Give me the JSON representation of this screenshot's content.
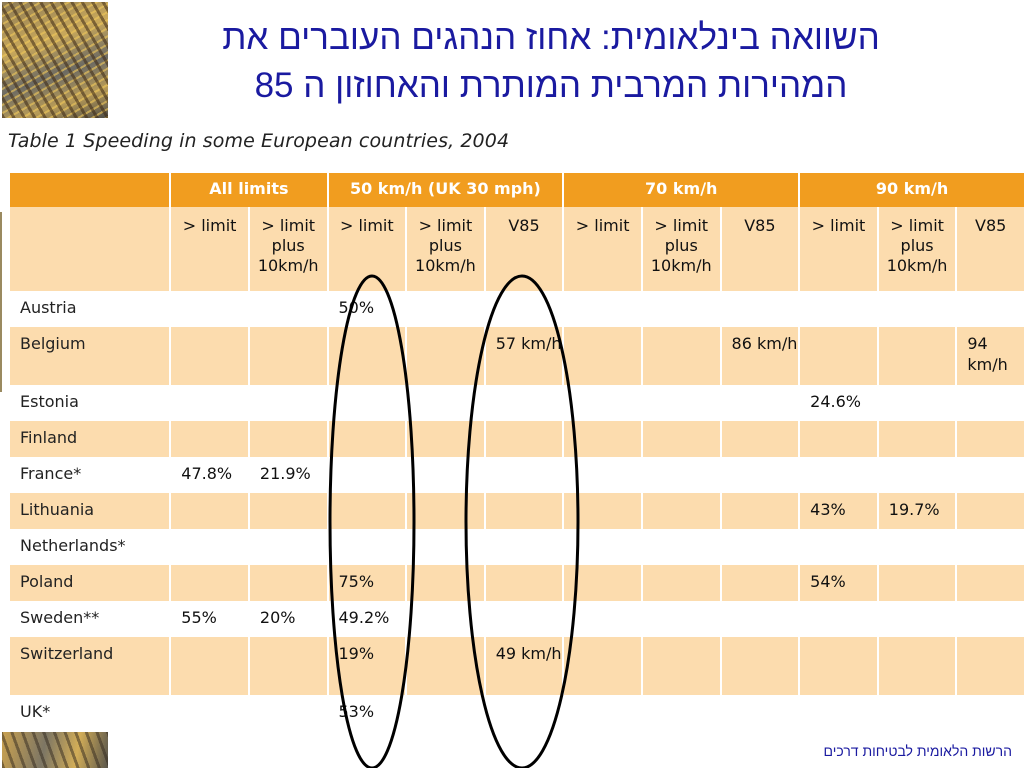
{
  "title": {
    "line1": "השוואה בינלאומית: אחוז הנהגים העוברים את",
    "line2": "המהירות המרבית המותרת והאחוזון ה 85"
  },
  "caption": "Table 1 Speeding in some European countries, 2004",
  "footer": "הרשות הלאומית לבטיחות דרכים",
  "colors": {
    "header_orange": "#f19d1f",
    "row_tint": "#fcdcae",
    "title_blue": "#1a1aa0"
  },
  "table": {
    "groups": [
      "All limits",
      "50 km/h (UK 30 mph)",
      "70 km/h",
      "90 km/h"
    ],
    "subheaders": [
      "> limit",
      "> limit plus 10km/h",
      "> limit",
      "> limit plus 10km/h",
      "V85",
      "> limit",
      "> limit plus 10km/h",
      "V85",
      "> limit",
      "> limit plus 10km/h",
      "V85"
    ],
    "rows": [
      {
        "country": "Austria",
        "cells": [
          "",
          "",
          "50%",
          "",
          "",
          "",
          "",
          "",
          "",
          "",
          ""
        ]
      },
      {
        "country": "Belgium",
        "cells": [
          "",
          "",
          "",
          "",
          "57 km/h",
          "",
          "",
          "86 km/h",
          "",
          "",
          "94 km/h"
        ]
      },
      {
        "country": "Estonia",
        "cells": [
          "",
          "",
          "",
          "",
          "",
          "",
          "",
          "",
          "24.6%",
          "",
          ""
        ]
      },
      {
        "country": "Finland",
        "cells": [
          "",
          "",
          "",
          "",
          "",
          "",
          "",
          "",
          "",
          "",
          ""
        ]
      },
      {
        "country": "France*",
        "cells": [
          "47.8%",
          "21.9%",
          "",
          "",
          "",
          "",
          "",
          "",
          "",
          "",
          ""
        ]
      },
      {
        "country": "Lithuania",
        "cells": [
          "",
          "",
          "",
          "",
          "",
          "",
          "",
          "",
          "43%",
          "19.7%",
          ""
        ]
      },
      {
        "country": "Netherlands*",
        "cells": [
          "",
          "",
          "",
          "",
          "",
          "",
          "",
          "",
          "",
          "",
          ""
        ]
      },
      {
        "country": "Poland",
        "cells": [
          "",
          "",
          "75%",
          "",
          "",
          "",
          "",
          "",
          "54%",
          "",
          ""
        ]
      },
      {
        "country": "Sweden**",
        "cells": [
          "55%",
          "20%",
          "49.2%",
          "",
          "",
          "",
          "",
          "",
          "",
          "",
          ""
        ]
      },
      {
        "country": "Switzerland",
        "cells": [
          "",
          "",
          "19%",
          "",
          "49 km/h",
          "",
          "",
          "",
          "",
          "",
          ""
        ]
      },
      {
        "country": "UK*",
        "cells": [
          "",
          "",
          "53%",
          "",
          "",
          "",
          "",
          "",
          "",
          "",
          ""
        ]
      }
    ]
  }
}
